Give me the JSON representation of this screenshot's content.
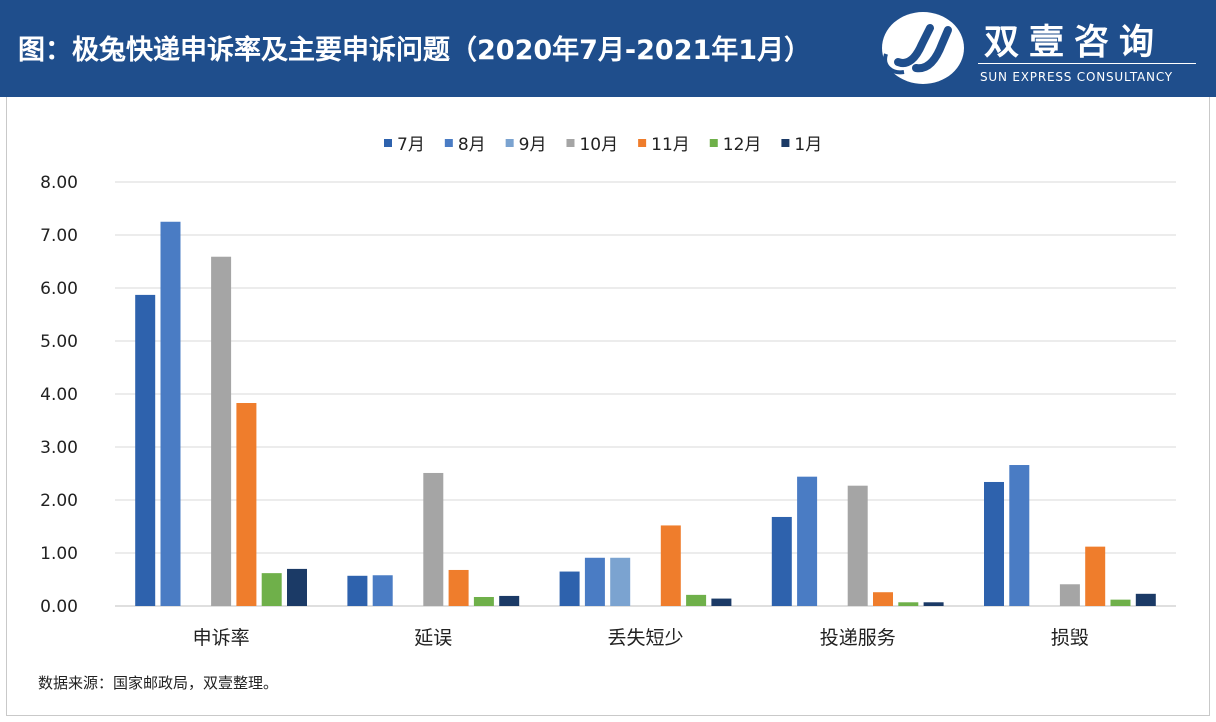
{
  "header": {
    "title": "图：极兔快递申诉率及主要申诉问题（2020年7月-2021年1月）",
    "brand_name": "双壹咨询",
    "brand_sub": "SUN EXPRESS CONSULTANCY"
  },
  "source_note": "数据来源：国家邮政局，双壹整理。",
  "colors": {
    "header_bg": "#1f4e8c",
    "grid": "#d9d9d9"
  },
  "chart_data": {
    "type": "bar",
    "title": "",
    "xlabel": "",
    "ylabel": "",
    "categories": [
      "申诉率",
      "延误",
      "丢失短少",
      "投递服务",
      "损毁"
    ],
    "ylim": [
      0,
      8
    ],
    "yticks": [
      "0.00",
      "1.00",
      "2.00",
      "3.00",
      "4.00",
      "5.00",
      "6.00",
      "7.00",
      "8.00"
    ],
    "legend_position": "top-center",
    "grid": true,
    "series": [
      {
        "name": "7月",
        "color": "#2e62ad",
        "values": [
          5.87,
          0.57,
          0.65,
          1.68,
          2.34
        ]
      },
      {
        "name": "8月",
        "color": "#4a7cc4",
        "values": [
          7.25,
          0.58,
          0.91,
          2.44,
          2.66
        ]
      },
      {
        "name": "9月",
        "color": "#7ba3d0",
        "values": [
          null,
          null,
          0.91,
          null,
          null
        ]
      },
      {
        "name": "10月",
        "color": "#a5a5a5",
        "values": [
          6.59,
          2.51,
          null,
          2.27,
          0.41
        ]
      },
      {
        "name": "11月",
        "color": "#ef7d2c",
        "values": [
          3.83,
          0.68,
          1.52,
          0.26,
          1.12
        ]
      },
      {
        "name": "12月",
        "color": "#6fb04a",
        "values": [
          0.62,
          0.17,
          0.21,
          0.07,
          0.12
        ]
      },
      {
        "name": "1月",
        "color": "#1b3a66",
        "values": [
          0.7,
          0.19,
          0.14,
          0.07,
          0.23
        ]
      }
    ]
  }
}
